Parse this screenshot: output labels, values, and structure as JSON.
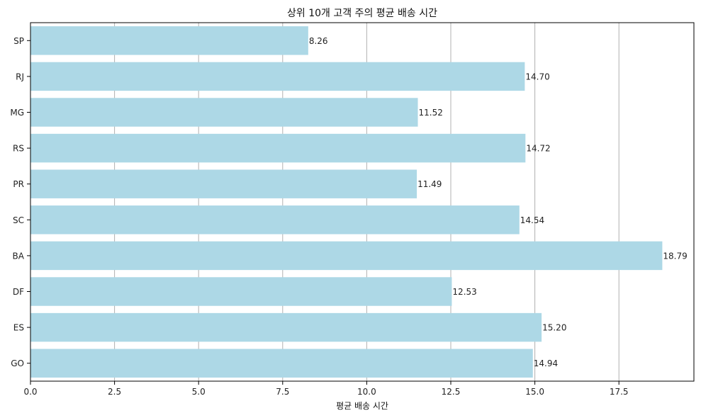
{
  "chart_data": {
    "type": "bar",
    "orientation": "horizontal",
    "title": "상위 10개 고객 주의 평균 배송 시간",
    "xlabel": "평균 배송 시간",
    "ylabel": "",
    "categories": [
      "SP",
      "RJ",
      "MG",
      "RS",
      "PR",
      "SC",
      "BA",
      "DF",
      "ES",
      "GO"
    ],
    "values": [
      8.26,
      14.7,
      11.52,
      14.72,
      11.49,
      14.54,
      18.79,
      12.53,
      15.2,
      14.94
    ],
    "value_labels": [
      "8.26",
      "14.70",
      "11.52",
      "14.72",
      "11.49",
      "14.54",
      "18.79",
      "12.53",
      "15.20",
      "14.94"
    ],
    "xlim": [
      0,
      19.73
    ],
    "xticks": [
      0,
      2.5,
      5,
      7.5,
      10,
      12.5,
      15,
      17.5
    ],
    "xtick_labels": [
      "0.0",
      "2.5",
      "5.0",
      "7.5",
      "10.0",
      "12.5",
      "15.0",
      "17.5"
    ],
    "grid": "x-axis vertical lines",
    "bar_color": "#add8e6",
    "grid_color": "#b0b0b0"
  }
}
